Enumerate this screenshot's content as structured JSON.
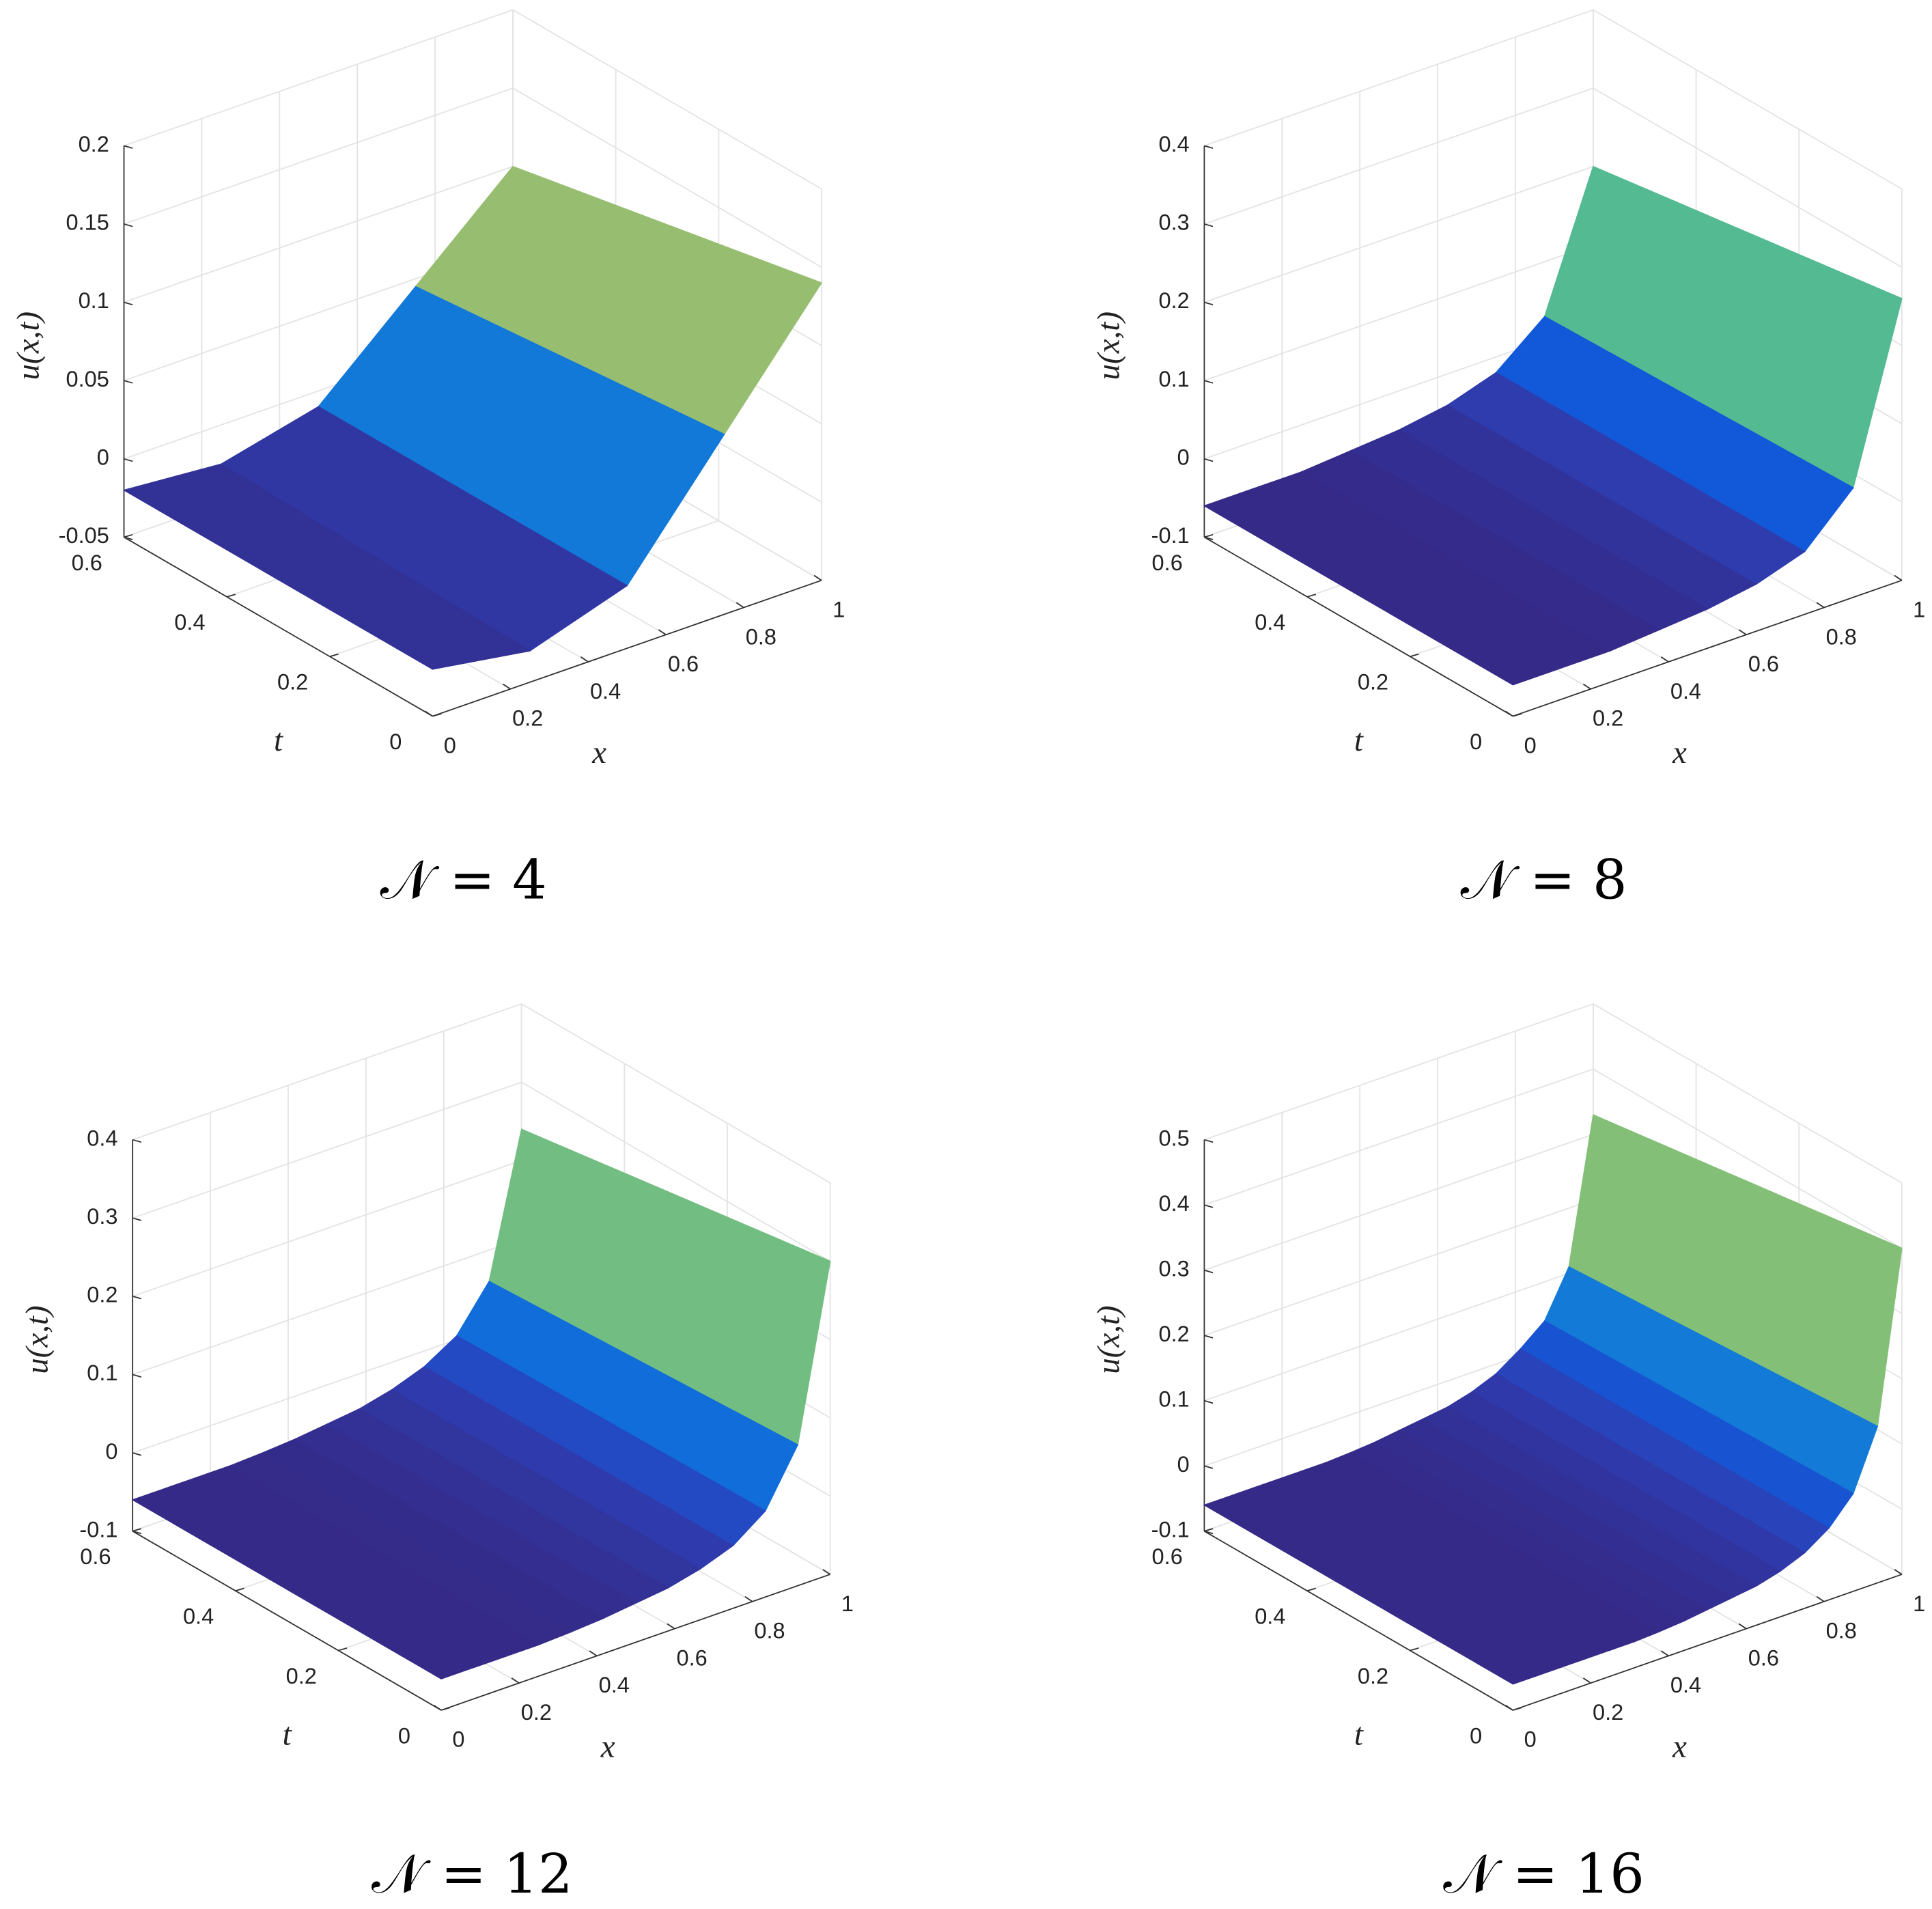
{
  "colormap": [
    "#352a87",
    "#2d3fb5",
    "#0f5cdd",
    "#1481d6",
    "#06a4ca",
    "#2eb7a4",
    "#87bf77",
    "#d1bb59",
    "#fec832",
    "#f9fb0e"
  ],
  "chart_data": [
    {
      "type": "surface",
      "caption": "𝒩 = 4",
      "xlabel": "x",
      "ylabel": "t",
      "zlabel": "u(x,t)",
      "x": [
        0,
        0.25,
        0.5,
        0.75,
        1
      ],
      "t": [
        0,
        0.6
      ],
      "z": [
        [
          -0.02,
          -0.03,
          -0.01,
          0.065,
          0.14
        ],
        [
          -0.02,
          -0.025,
          -0.01,
          0.045,
          0.1
        ]
      ],
      "xlim": [
        0,
        1
      ],
      "xticks": [
        0,
        0.2,
        0.4,
        0.6,
        0.8,
        1
      ],
      "ylim": [
        0,
        0.6
      ],
      "yticks": [
        0,
        0.2,
        0.4,
        0.6
      ],
      "zlim": [
        -0.05,
        0.2
      ],
      "zticks": [
        -0.05,
        0,
        0.05,
        0.1,
        0.15,
        0.2
      ],
      "grid": true
    },
    {
      "type": "surface",
      "caption": "𝒩 = 8",
      "xlabel": "x",
      "ylabel": "t",
      "zlabel": "u(x,t)",
      "x": [
        0,
        0.125,
        0.25,
        0.375,
        0.5,
        0.625,
        0.75,
        0.875,
        1
      ],
      "t": [
        0,
        0.6
      ],
      "z": [
        [
          -0.06,
          -0.06,
          -0.06,
          -0.055,
          -0.05,
          -0.04,
          -0.02,
          0.04,
          0.26
        ],
        [
          -0.06,
          -0.06,
          -0.06,
          -0.055,
          -0.05,
          -0.04,
          -0.02,
          0.03,
          0.2
        ]
      ],
      "xlim": [
        0,
        1
      ],
      "xticks": [
        0,
        0.2,
        0.4,
        0.6,
        0.8,
        1
      ],
      "ylim": [
        0,
        0.6
      ],
      "yticks": [
        0,
        0.2,
        0.4,
        0.6
      ],
      "zlim": [
        -0.1,
        0.4
      ],
      "zticks": [
        -0.1,
        0,
        0.1,
        0.2,
        0.3,
        0.4
      ],
      "grid": true
    },
    {
      "type": "surface",
      "caption": "𝒩 = 12",
      "xlabel": "x",
      "ylabel": "t",
      "zlabel": "u(x,t)",
      "x": [
        0,
        0.0833,
        0.1667,
        0.25,
        0.3333,
        0.4167,
        0.5,
        0.5833,
        0.6667,
        0.75,
        0.8333,
        0.9167,
        1
      ],
      "t": [
        0,
        0.6
      ],
      "z": [
        [
          -0.06,
          -0.06,
          -0.06,
          -0.06,
          -0.058,
          -0.055,
          -0.05,
          -0.045,
          -0.035,
          -0.02,
          0.01,
          0.08,
          0.3
        ],
        [
          -0.06,
          -0.06,
          -0.06,
          -0.06,
          -0.058,
          -0.055,
          -0.05,
          -0.045,
          -0.035,
          -0.02,
          0.005,
          0.06,
          0.24
        ]
      ],
      "xlim": [
        0,
        1
      ],
      "xticks": [
        0,
        0.2,
        0.4,
        0.6,
        0.8,
        1
      ],
      "ylim": [
        0,
        0.6
      ],
      "yticks": [
        0,
        0.2,
        0.4,
        0.6
      ],
      "zlim": [
        -0.1,
        0.4
      ],
      "zticks": [
        -0.1,
        0,
        0.1,
        0.2,
        0.3,
        0.4
      ],
      "grid": true
    },
    {
      "type": "surface",
      "caption": "𝒩 = 16",
      "xlabel": "x",
      "ylabel": "t",
      "zlabel": "u(x,t)",
      "x": [
        0,
        0.0625,
        0.125,
        0.1875,
        0.25,
        0.3125,
        0.375,
        0.4375,
        0.5,
        0.5625,
        0.625,
        0.6875,
        0.75,
        0.8125,
        0.875,
        0.9375,
        1
      ],
      "t": [
        0,
        0.6
      ],
      "z": [
        [
          -0.06,
          -0.06,
          -0.06,
          -0.06,
          -0.06,
          -0.06,
          -0.058,
          -0.055,
          -0.05,
          -0.045,
          -0.04,
          -0.03,
          -0.015,
          0.01,
          0.05,
          0.14,
          0.4
        ],
        [
          -0.06,
          -0.06,
          -0.06,
          -0.06,
          -0.06,
          -0.06,
          -0.058,
          -0.055,
          -0.05,
          -0.045,
          -0.04,
          -0.03,
          -0.015,
          0.01,
          0.04,
          0.11,
          0.33
        ]
      ],
      "xlim": [
        0,
        1
      ],
      "xticks": [
        0,
        0.2,
        0.4,
        0.6,
        0.8,
        1
      ],
      "ylim": [
        0,
        0.6
      ],
      "yticks": [
        0,
        0.2,
        0.4,
        0.6
      ],
      "zlim": [
        -0.1,
        0.5
      ],
      "zticks": [
        -0.1,
        0,
        0.1,
        0.2,
        0.3,
        0.4,
        0.5
      ],
      "grid": true
    }
  ]
}
